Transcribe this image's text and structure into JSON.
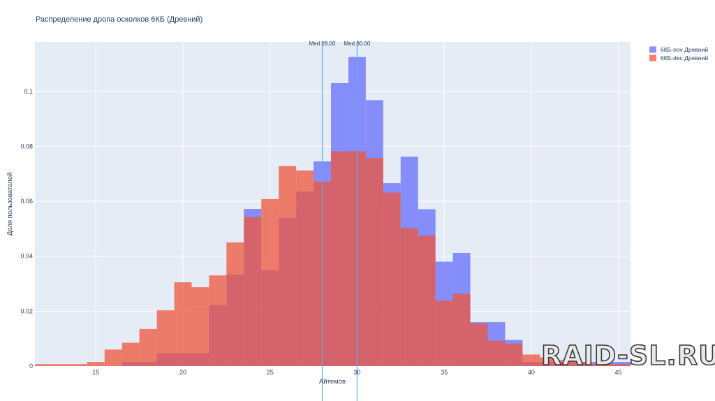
{
  "chart_data": {
    "type": "histogram",
    "title": "Распределение дропа осколков 6КБ (Древний)",
    "xlabel": "Айтемов",
    "ylabel": "Доля пользователей",
    "xlim": [
      11.5,
      45.7
    ],
    "ylim": [
      0,
      0.118
    ],
    "x_ticks": [
      15,
      20,
      25,
      30,
      35,
      40,
      45
    ],
    "y_ticks": [
      0,
      0.02,
      0.04,
      0.06,
      0.08,
      0.1
    ],
    "y_tick_labels": [
      "0",
      "0.02",
      "0.04",
      "0.06",
      "0.08",
      "0.1"
    ],
    "grid": true,
    "legend_position": "top-right",
    "barmode": "overlay",
    "bins": [
      [
        11.5,
        12.5
      ],
      [
        12.5,
        13.5
      ],
      [
        13.5,
        14.5
      ],
      [
        14.5,
        15.5
      ],
      [
        15.5,
        16.5
      ],
      [
        16.5,
        17.5
      ],
      [
        17.5,
        18.5
      ],
      [
        18.5,
        19.5
      ],
      [
        19.5,
        20.5
      ],
      [
        20.5,
        21.5
      ],
      [
        21.5,
        22.5
      ],
      [
        22.5,
        23.5
      ],
      [
        23.5,
        24.5
      ],
      [
        24.5,
        25.5
      ],
      [
        25.5,
        26.5
      ],
      [
        26.5,
        27.5
      ],
      [
        27.5,
        28.5
      ],
      [
        28.5,
        29.5
      ],
      [
        29.5,
        30.5
      ],
      [
        30.5,
        31.5
      ],
      [
        31.5,
        32.5
      ],
      [
        32.5,
        33.5
      ],
      [
        33.5,
        34.5
      ],
      [
        34.5,
        35.5
      ],
      [
        35.5,
        36.5
      ],
      [
        36.5,
        37.5
      ],
      [
        37.5,
        38.5
      ],
      [
        38.5,
        39.5
      ],
      [
        39.5,
        40.5
      ],
      [
        40.5,
        41.5
      ],
      [
        41.5,
        42.5
      ],
      [
        42.5,
        43.5
      ],
      [
        43.5,
        44.5
      ],
      [
        44.5,
        45.7
      ]
    ],
    "series": [
      {
        "name": "6КБ-nov Древний",
        "color": "#636efa",
        "values": [
          0,
          0,
          0,
          0,
          0,
          0.0015,
          0.0015,
          0.0047,
          0.0047,
          0.0047,
          0.0222,
          0.0333,
          0.0572,
          0.0349,
          0.054,
          0.0635,
          0.0745,
          0.103,
          0.1125,
          0.0968,
          0.0666,
          0.0762,
          0.0571,
          0.038,
          0.0412,
          0.016,
          0.016,
          0.0095,
          0.0015,
          0.0015,
          0.0015,
          0.0015,
          0.0015,
          0.0015
        ]
      },
      {
        "name": "6КБ-dec Древний",
        "color": "#ef553b",
        "values": [
          0.0007,
          0.0007,
          0.0007,
          0.0015,
          0.006,
          0.0085,
          0.0135,
          0.0203,
          0.0305,
          0.0287,
          0.033,
          0.045,
          0.0543,
          0.0608,
          0.0728,
          0.0712,
          0.0672,
          0.0782,
          0.0782,
          0.0757,
          0.0632,
          0.0502,
          0.0475,
          0.0238,
          0.0263,
          0.0155,
          0.0092,
          0.0082,
          0.0042,
          0.0032,
          0.0022,
          0.0015,
          0.0007,
          0.0007
        ]
      }
    ],
    "medians": [
      {
        "x": 28.0,
        "label": "Med 28.00"
      },
      {
        "x": 30.0,
        "label": "Med 30.00"
      }
    ],
    "median_line_color": "#5aaee8"
  },
  "watermark": "RAID-SL.RU"
}
